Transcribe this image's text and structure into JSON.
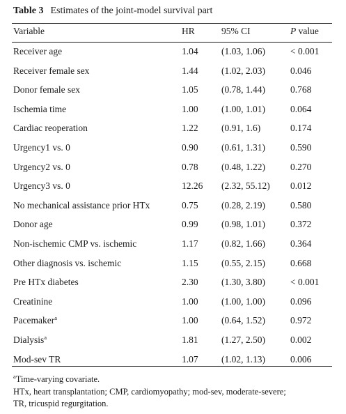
{
  "table": {
    "number": "Table 3",
    "title": "Estimates of the joint-model survival part",
    "headers": {
      "variable": "Variable",
      "hr": "HR",
      "ci": "95% CI",
      "p_italic": "P",
      "p_rest": " value"
    },
    "rows": [
      {
        "variable": "Receiver age",
        "sup": "",
        "hr": "1.04",
        "ci": "(1.03, 1.06)",
        "p": "< 0.001"
      },
      {
        "variable": "Receiver female sex",
        "sup": "",
        "hr": "1.44",
        "ci": "(1.02, 2.03)",
        "p": "0.046"
      },
      {
        "variable": "Donor female sex",
        "sup": "",
        "hr": "1.05",
        "ci": "(0.78, 1.44)",
        "p": "0.768"
      },
      {
        "variable": "Ischemia time",
        "sup": "",
        "hr": "1.00",
        "ci": "(1.00, 1.01)",
        "p": "0.064"
      },
      {
        "variable": "Cardiac reoperation",
        "sup": "",
        "hr": "1.22",
        "ci": "(0.91, 1.6)",
        "p": "0.174"
      },
      {
        "variable": "Urgency1 vs. 0",
        "sup": "",
        "hr": "0.90",
        "ci": "(0.61, 1.31)",
        "p": "0.590"
      },
      {
        "variable": "Urgency2 vs. 0",
        "sup": "",
        "hr": "0.78",
        "ci": "(0.48, 1.22)",
        "p": "0.270"
      },
      {
        "variable": "Urgency3 vs. 0",
        "sup": "",
        "hr": "12.26",
        "ci": "(2.32, 55.12)",
        "p": "0.012"
      },
      {
        "variable": "No mechanical assistance prior HTx",
        "sup": "",
        "hr": "0.75",
        "ci": "(0.28, 2.19)",
        "p": "0.580"
      },
      {
        "variable": "Donor age",
        "sup": "",
        "hr": "0.99",
        "ci": "(0.98, 1.01)",
        "p": "0.372"
      },
      {
        "variable": "Non-ischemic CMP vs. ischemic",
        "sup": "",
        "hr": "1.17",
        "ci": "(0.82, 1.66)",
        "p": "0.364"
      },
      {
        "variable": "Other diagnosis vs. ischemic",
        "sup": "",
        "hr": "1.15",
        "ci": "(0.55, 2.15)",
        "p": "0.668"
      },
      {
        "variable": "Pre HTx diabetes",
        "sup": "",
        "hr": "2.30",
        "ci": "(1.30, 3.80)",
        "p": "< 0.001"
      },
      {
        "variable": "Creatinine",
        "sup": "",
        "hr": "1.00",
        "ci": "(1.00, 1.00)",
        "p": "0.096"
      },
      {
        "variable": "Pacemaker",
        "sup": "a",
        "hr": "1.00",
        "ci": "(0.64, 1.52)",
        "p": "0.972"
      },
      {
        "variable": "Dialysis",
        "sup": "a",
        "hr": "1.81",
        "ci": "(1.27, 2.50)",
        "p": "0.002"
      },
      {
        "variable": "Mod-sev TR",
        "sup": "",
        "hr": "1.07",
        "ci": "(1.02, 1.13)",
        "p": "0.006"
      }
    ],
    "footnotes": {
      "a_marker": "a",
      "a_text": "Time-varying covariate.",
      "abbrev_line1": "HTx, heart transplantation; CMP, cardiomyopathy; mod-sev, moderate-severe;",
      "abbrev_line2": "TR, tricuspid regurgitation."
    }
  }
}
